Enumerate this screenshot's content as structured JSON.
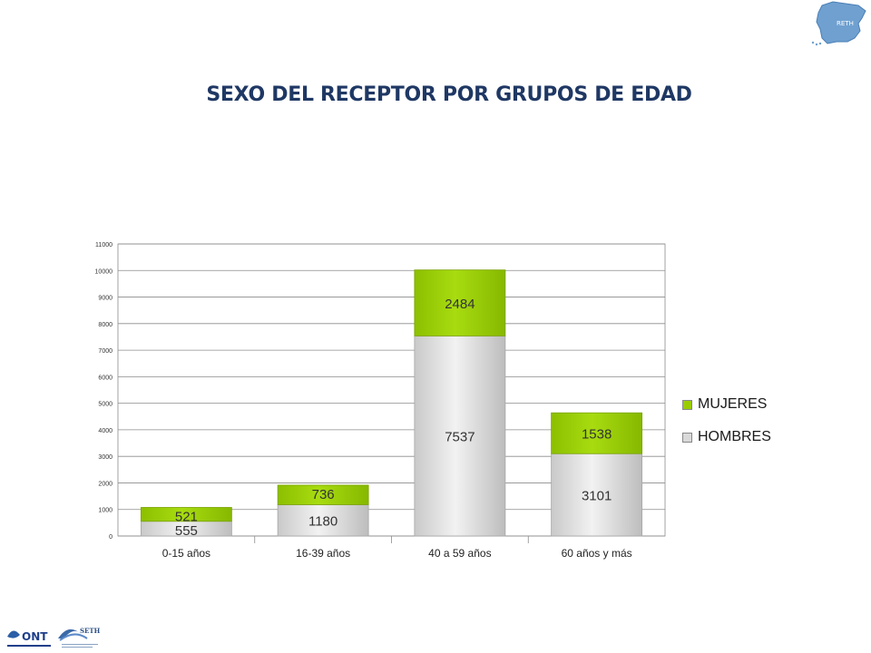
{
  "header": {
    "title": "SEXO DEL RECEPTOR POR GRUPOS DE EDAD"
  },
  "logos": {
    "map_label": "RETH",
    "ont_label": "ONT",
    "seth_label": "SETH"
  },
  "colors": {
    "mujeres": "#99cc00",
    "hombres": "#d9d9d9",
    "title": "#1f3864"
  },
  "chart_data": {
    "type": "bar",
    "stacked": true,
    "categories": [
      "0-15 años",
      "16-39 años",
      "40 a 59 años",
      "60 años y más"
    ],
    "series": [
      {
        "name": "HOMBRES",
        "values": [
          555,
          1180,
          7537,
          3101
        ]
      },
      {
        "name": "MUJERES",
        "values": [
          521,
          736,
          2484,
          1538
        ]
      }
    ],
    "ylim": [
      0,
      11000
    ],
    "yticks": [
      0,
      1000,
      2000,
      3000,
      4000,
      5000,
      6000,
      7000,
      8000,
      9000,
      10000,
      11000
    ],
    "ytick_labels": [
      "0",
      "1000",
      "2000",
      "3000",
      "4000",
      "5000",
      "6000",
      "7000",
      "8000",
      "9000",
      "10000",
      "11000"
    ],
    "grid": true,
    "legend_position": "right",
    "title": "SEXO DEL RECEPTOR POR GRUPOS DE EDAD",
    "xlabel": "",
    "ylabel": ""
  }
}
